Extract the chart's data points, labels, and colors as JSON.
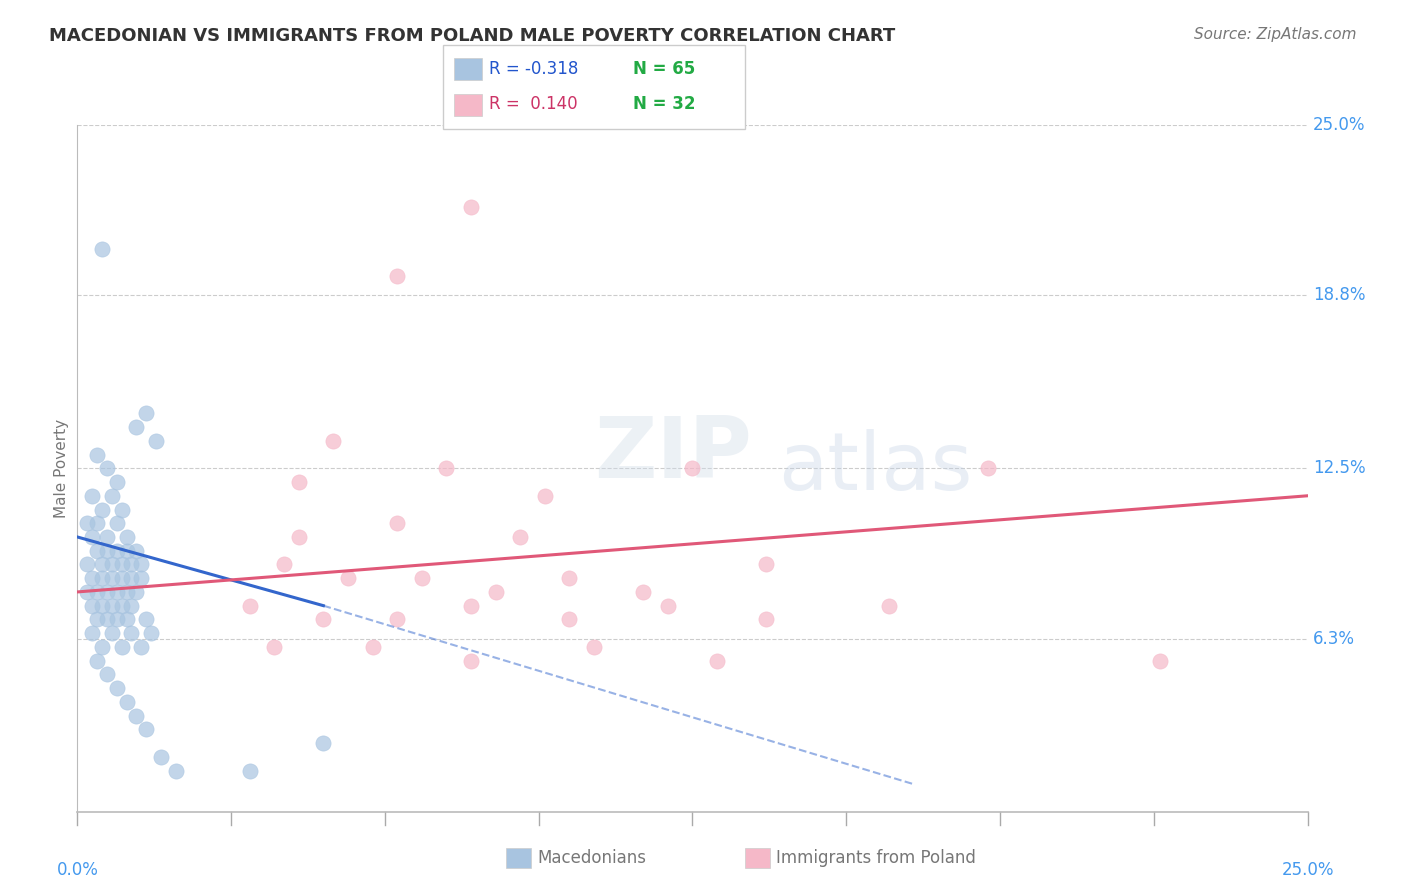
{
  "title": "MACEDONIAN VS IMMIGRANTS FROM POLAND MALE POVERTY CORRELATION CHART",
  "source": "Source: ZipAtlas.com",
  "ylabel": "Male Poverty",
  "xlim": [
    0.0,
    25.0
  ],
  "ylim": [
    0.0,
    25.0
  ],
  "y_tick_values_right": [
    6.3,
    12.5,
    18.8,
    25.0
  ],
  "y_tick_labels_right": [
    "6.3%",
    "12.5%",
    "18.8%",
    "25.0%"
  ],
  "x_tick_positions": [
    0.0,
    3.125,
    6.25,
    9.375,
    12.5,
    15.625,
    18.75,
    21.875,
    25.0
  ],
  "grid_color": "#cccccc",
  "background_color": "#ffffff",
  "macedonian_color": "#a8c4e0",
  "macedonian_edge": "#a8c4e0",
  "poland_color": "#f5b8c8",
  "poland_edge": "#f5b8c8",
  "macedonian_line_color": "#3366cc",
  "poland_line_color": "#e05878",
  "title_color": "#333333",
  "source_color": "#777777",
  "axis_label_color": "#777777",
  "tick_color": "#4499ee",
  "r_color_blue": "#2255cc",
  "r_color_pink": "#cc3366",
  "n_color": "#22aa44",
  "macedonian_points": [
    [
      0.5,
      20.5
    ],
    [
      0.4,
      13.0
    ],
    [
      0.6,
      12.5
    ],
    [
      0.8,
      12.0
    ],
    [
      0.3,
      11.5
    ],
    [
      0.5,
      11.0
    ],
    [
      0.7,
      11.5
    ],
    [
      0.9,
      11.0
    ],
    [
      0.4,
      10.5
    ],
    [
      0.6,
      10.0
    ],
    [
      0.8,
      10.5
    ],
    [
      1.0,
      10.0
    ],
    [
      1.2,
      14.0
    ],
    [
      1.4,
      14.5
    ],
    [
      1.6,
      13.5
    ],
    [
      0.2,
      10.5
    ],
    [
      0.3,
      10.0
    ],
    [
      0.4,
      9.5
    ],
    [
      0.5,
      9.0
    ],
    [
      0.6,
      9.5
    ],
    [
      0.7,
      9.0
    ],
    [
      0.8,
      9.5
    ],
    [
      0.9,
      9.0
    ],
    [
      1.0,
      9.5
    ],
    [
      1.1,
      9.0
    ],
    [
      1.2,
      9.5
    ],
    [
      1.3,
      9.0
    ],
    [
      0.2,
      9.0
    ],
    [
      0.3,
      8.5
    ],
    [
      0.4,
      8.0
    ],
    [
      0.5,
      8.5
    ],
    [
      0.6,
      8.0
    ],
    [
      0.7,
      8.5
    ],
    [
      0.8,
      8.0
    ],
    [
      0.9,
      8.5
    ],
    [
      1.0,
      8.0
    ],
    [
      1.1,
      8.5
    ],
    [
      1.2,
      8.0
    ],
    [
      1.3,
      8.5
    ],
    [
      0.2,
      8.0
    ],
    [
      0.3,
      7.5
    ],
    [
      0.4,
      7.0
    ],
    [
      0.5,
      7.5
    ],
    [
      0.6,
      7.0
    ],
    [
      0.7,
      7.5
    ],
    [
      0.8,
      7.0
    ],
    [
      0.9,
      7.5
    ],
    [
      1.0,
      7.0
    ],
    [
      1.1,
      7.5
    ],
    [
      1.4,
      7.0
    ],
    [
      0.3,
      6.5
    ],
    [
      0.5,
      6.0
    ],
    [
      0.7,
      6.5
    ],
    [
      0.9,
      6.0
    ],
    [
      1.1,
      6.5
    ],
    [
      1.3,
      6.0
    ],
    [
      1.5,
      6.5
    ],
    [
      0.4,
      5.5
    ],
    [
      0.6,
      5.0
    ],
    [
      0.8,
      4.5
    ],
    [
      1.0,
      4.0
    ],
    [
      1.2,
      3.5
    ],
    [
      1.4,
      3.0
    ],
    [
      1.7,
      2.0
    ],
    [
      2.0,
      1.5
    ],
    [
      3.5,
      1.5
    ],
    [
      5.0,
      2.5
    ]
  ],
  "poland_points": [
    [
      8.0,
      22.0
    ],
    [
      6.5,
      19.5
    ],
    [
      5.2,
      13.5
    ],
    [
      7.5,
      12.5
    ],
    [
      4.5,
      12.0
    ],
    [
      9.5,
      11.5
    ],
    [
      6.5,
      10.5
    ],
    [
      4.5,
      10.0
    ],
    [
      9.0,
      10.0
    ],
    [
      12.5,
      12.5
    ],
    [
      4.2,
      9.0
    ],
    [
      5.5,
      8.5
    ],
    [
      7.0,
      8.5
    ],
    [
      8.5,
      8.0
    ],
    [
      10.0,
      8.5
    ],
    [
      11.5,
      8.0
    ],
    [
      14.0,
      9.0
    ],
    [
      18.5,
      12.5
    ],
    [
      3.5,
      7.5
    ],
    [
      5.0,
      7.0
    ],
    [
      6.5,
      7.0
    ],
    [
      8.0,
      7.5
    ],
    [
      10.0,
      7.0
    ],
    [
      12.0,
      7.5
    ],
    [
      14.0,
      7.0
    ],
    [
      16.5,
      7.5
    ],
    [
      4.0,
      6.0
    ],
    [
      6.0,
      6.0
    ],
    [
      8.0,
      5.5
    ],
    [
      10.5,
      6.0
    ],
    [
      13.0,
      5.5
    ],
    [
      22.0,
      5.5
    ]
  ],
  "blue_line_solid": [
    [
      0.0,
      10.0
    ],
    [
      5.0,
      7.5
    ]
  ],
  "blue_line_dash": [
    [
      5.0,
      7.5
    ],
    [
      17.0,
      1.0
    ]
  ],
  "pink_line": [
    [
      0.0,
      8.0
    ],
    [
      25.0,
      11.5
    ]
  ]
}
